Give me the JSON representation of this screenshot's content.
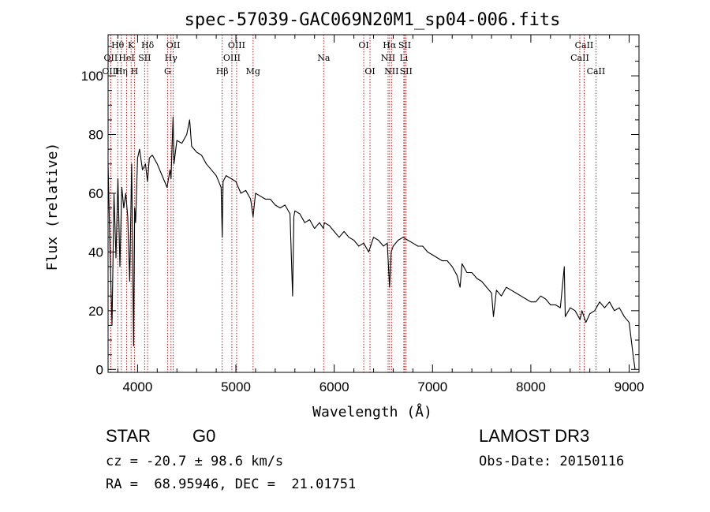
{
  "chart_data": {
    "type": "line",
    "title": "spec-57039-GAC069N20M1_sp04-006.fits",
    "xlabel": "Wavelength (Å)",
    "ylabel": "Flux (relative)",
    "xlim": [
      3700,
      9100
    ],
    "ylim": [
      -1,
      114
    ],
    "xticks": [
      4000,
      5000,
      6000,
      7000,
      8000,
      9000
    ],
    "yticks": [
      0,
      20,
      40,
      60,
      80,
      100
    ],
    "series": [
      {
        "name": "flux",
        "x": [
          3700,
          3720,
          3740,
          3760,
          3780,
          3800,
          3820,
          3840,
          3860,
          3880,
          3900,
          3920,
          3940,
          3960,
          3970,
          3980,
          4000,
          4020,
          4050,
          4080,
          4101,
          4120,
          4150,
          4200,
          4250,
          4300,
          4330,
          4340,
          4350,
          4361,
          4370,
          4400,
          4450,
          4500,
          4530,
          4550,
          4600,
          4650,
          4700,
          4750,
          4800,
          4850,
          4861,
          4870,
          4900,
          4950,
          5000,
          5050,
          5100,
          5150,
          5175,
          5200,
          5250,
          5300,
          5350,
          5400,
          5450,
          5500,
          5550,
          5577,
          5590,
          5600,
          5650,
          5700,
          5750,
          5800,
          5850,
          5890,
          5900,
          5950,
          6000,
          6050,
          6100,
          6150,
          6200,
          6250,
          6300,
          6350,
          6400,
          6450,
          6500,
          6540,
          6563,
          6580,
          6600,
          6650,
          6700,
          6750,
          6800,
          6850,
          6900,
          6950,
          7000,
          7050,
          7100,
          7150,
          7200,
          7250,
          7280,
          7300,
          7350,
          7400,
          7450,
          7500,
          7550,
          7600,
          7620,
          7650,
          7700,
          7750,
          7800,
          7850,
          7900,
          7950,
          8000,
          8050,
          8100,
          8150,
          8200,
          8250,
          8300,
          8340,
          8350,
          8400,
          8450,
          8500,
          8520,
          8540,
          8560,
          8600,
          8650,
          8700,
          8750,
          8800,
          8850,
          8900,
          8950,
          9000,
          9040,
          9060
        ],
        "y": [
          70,
          40,
          15,
          60,
          38,
          65,
          35,
          62,
          55,
          60,
          52,
          30,
          70,
          8,
          55,
          50,
          72,
          75,
          68,
          70,
          64,
          72,
          73,
          70,
          66,
          62,
          68,
          65,
          75,
          86,
          70,
          78,
          77,
          80,
          85,
          76,
          74,
          73,
          70,
          68,
          66,
          62,
          45,
          64,
          66,
          65,
          64,
          60,
          61,
          58,
          52,
          60,
          59,
          58,
          58,
          56,
          55,
          56,
          53,
          25,
          52,
          54,
          53,
          50,
          51,
          48,
          50,
          48,
          50,
          49,
          47,
          45,
          47,
          45,
          44,
          42,
          43,
          40,
          45,
          44,
          42,
          43,
          28,
          40,
          42,
          44,
          45,
          44,
          43,
          42,
          42,
          40,
          39,
          38,
          37,
          37,
          35,
          32,
          28,
          36,
          33,
          33,
          31,
          30,
          28,
          26,
          18,
          27,
          25,
          28,
          27,
          26,
          25,
          24,
          23,
          23,
          25,
          24,
          22,
          22,
          21,
          35,
          18,
          21,
          20,
          17,
          20,
          18,
          16,
          19,
          20,
          23,
          21,
          23,
          20,
          21,
          18,
          16,
          5,
          0
        ]
      }
    ],
    "lines": [
      {
        "name": "Hθ",
        "x": 3798,
        "row": 0
      },
      {
        "name": "Hη",
        "x": 3835,
        "row": 2
      },
      {
        "name": "OII",
        "x": 3727,
        "row": 1
      },
      {
        "name": "OIII",
        "x": 3727,
        "row": 2
      },
      {
        "name": "HeI",
        "x": 3889,
        "row": 1
      },
      {
        "name": "K",
        "x": 3934,
        "row": 0
      },
      {
        "name": "H",
        "x": 3968,
        "row": 2
      },
      {
        "name": "SII",
        "x": 4072,
        "row": 1
      },
      {
        "name": "Hδ",
        "x": 4102,
        "row": 0
      },
      {
        "name": "G",
        "x": 4305,
        "row": 2
      },
      {
        "name": "Hγ",
        "x": 4340,
        "row": 1
      },
      {
        "name": "OII",
        "x": 4363,
        "row": 0
      },
      {
        "name": "Hβ",
        "x": 4861,
        "row": 2
      },
      {
        "name": "OIII",
        "x": 4959,
        "row": 1
      },
      {
        "name": "OIII",
        "x": 5007,
        "row": 0
      },
      {
        "name": "Mg",
        "x": 5175,
        "row": 2
      },
      {
        "name": "Na",
        "x": 5893,
        "row": 1
      },
      {
        "name": "OI",
        "x": 6300,
        "row": 0
      },
      {
        "name": "OI",
        "x": 6364,
        "row": 2
      },
      {
        "name": "NII",
        "x": 6548,
        "row": 1
      },
      {
        "name": "Hα",
        "x": 6563,
        "row": 0
      },
      {
        "name": "NII",
        "x": 6583,
        "row": 2
      },
      {
        "name": "Li",
        "x": 6708,
        "row": 1
      },
      {
        "name": "SII",
        "x": 6717,
        "row": 0
      },
      {
        "name": "SII",
        "x": 6731,
        "row": 2
      },
      {
        "name": "CaII",
        "x": 8498,
        "row": 1
      },
      {
        "name": "CaII",
        "x": 8542,
        "row": 0
      },
      {
        "name": "CaII",
        "x": 8662,
        "row": 2
      }
    ]
  },
  "info": {
    "class": "STAR",
    "subclass": "G0",
    "survey": "LAMOST DR3",
    "cz": "cz = -20.7 ± 98.6 km/s",
    "obs_date": "Obs-Date: 20150116",
    "radec": "RA =  68.95946, DEC =  21.01751"
  }
}
